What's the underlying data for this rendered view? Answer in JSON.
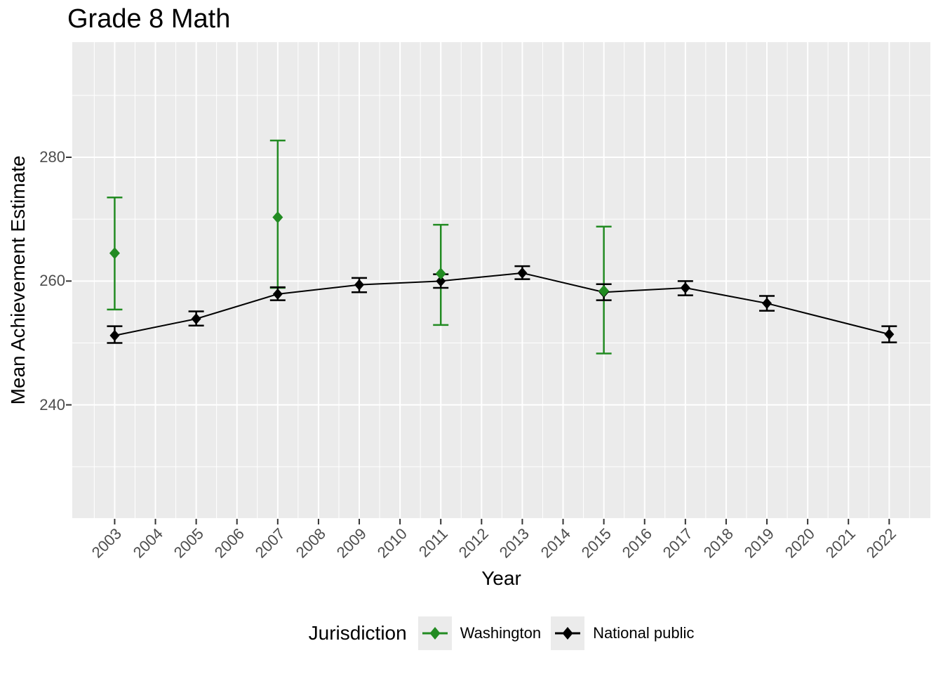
{
  "chart_data": {
    "type": "line",
    "title": "Grade 8 Math",
    "xlabel": "Year",
    "ylabel": "Mean Achievement Estimate",
    "x_ticks": [
      2003,
      2004,
      2005,
      2006,
      2007,
      2008,
      2009,
      2010,
      2011,
      2012,
      2013,
      2014,
      2015,
      2016,
      2017,
      2018,
      2019,
      2020,
      2021,
      2022
    ],
    "y_ticks": [
      240,
      260,
      280
    ],
    "y_minor_ticks": [
      230,
      250,
      270,
      290
    ],
    "xlim": [
      2001.96,
      2023.01
    ],
    "ylim": [
      221.7,
      298.6
    ],
    "grid": true,
    "legend": {
      "title": "Jurisdiction",
      "position": "bottom",
      "entries": [
        {
          "label": "Washington",
          "color": "#228B22"
        },
        {
          "label": "National public",
          "color": "#000000"
        }
      ]
    },
    "series": [
      {
        "name": "Washington",
        "color": "#228B22",
        "connected": false,
        "marker": "diamond",
        "points": [
          {
            "year": 2003,
            "mean": 264.5,
            "lo": 255.4,
            "hi": 273.5
          },
          {
            "year": 2007,
            "mean": 270.3,
            "lo": 258.9,
            "hi": 282.7
          },
          {
            "year": 2011,
            "mean": 261.2,
            "lo": 252.9,
            "hi": 269.1
          },
          {
            "year": 2015,
            "mean": 258.4,
            "lo": 248.3,
            "hi": 268.8
          }
        ]
      },
      {
        "name": "National public",
        "color": "#000000",
        "connected": true,
        "marker": "diamond",
        "points": [
          {
            "year": 2003,
            "mean": 251.2,
            "lo": 250.0,
            "hi": 252.7
          },
          {
            "year": 2005,
            "mean": 253.9,
            "lo": 252.8,
            "hi": 255.1
          },
          {
            "year": 2007,
            "mean": 257.9,
            "lo": 256.9,
            "hi": 259.0
          },
          {
            "year": 2009,
            "mean": 259.4,
            "lo": 258.2,
            "hi": 260.5
          },
          {
            "year": 2011,
            "mean": 260.0,
            "lo": 258.9,
            "hi": 261.1
          },
          {
            "year": 2013,
            "mean": 261.3,
            "lo": 260.3,
            "hi": 262.4
          },
          {
            "year": 2015,
            "mean": 258.2,
            "lo": 256.9,
            "hi": 259.5
          },
          {
            "year": 2017,
            "mean": 258.9,
            "lo": 257.7,
            "hi": 260.0
          },
          {
            "year": 2019,
            "mean": 256.4,
            "lo": 255.2,
            "hi": 257.6
          },
          {
            "year": 2022,
            "mean": 251.4,
            "lo": 250.1,
            "hi": 252.7
          }
        ]
      }
    ]
  },
  "style": {
    "panel_bg": "#EBEBEB",
    "grid_color": "#FFFFFF",
    "axis_text_color": "#4D4D4D",
    "tick_mark_color": "#333333",
    "legend_key_bg": "#EBEBEB"
  }
}
